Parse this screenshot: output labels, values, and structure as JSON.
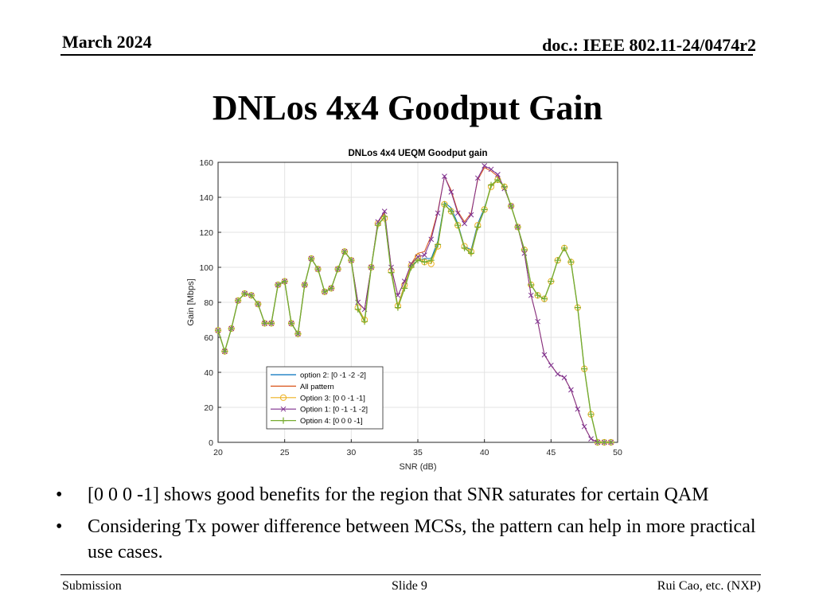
{
  "header": {
    "date": "March 2024",
    "doc": "doc.: IEEE 802.11-24/0474r2"
  },
  "slide_title": "DNLos 4x4 Goodput Gain",
  "bullets": [
    "[0 0 0 -1] shows good benefits for the region that SNR saturates for certain QAM",
    "Considering Tx power difference between MCSs, the pattern can help in more practical use cases."
  ],
  "bullet_glyph": "•",
  "footer": {
    "left": "Submission",
    "center": "Slide 9",
    "right": "Rui Cao, etc. (NXP)"
  },
  "chart_data": {
    "type": "line",
    "title": "DNLos 4x4 UEQM Goodput gain",
    "xlabel": "SNR (dB)",
    "ylabel": "Gain [Mbps]",
    "xlim": [
      20,
      50
    ],
    "ylim": [
      0,
      160
    ],
    "xticks": [
      20,
      25,
      30,
      35,
      40,
      45,
      50
    ],
    "yticks": [
      0,
      20,
      40,
      60,
      80,
      100,
      120,
      140,
      160
    ],
    "grid": true,
    "legend_position": "bottom-left",
    "x": [
      20,
      20.5,
      21,
      21.5,
      22,
      22.5,
      23,
      23.5,
      24,
      24.5,
      25,
      25.5,
      26,
      26.5,
      27,
      27.5,
      28,
      28.5,
      29,
      29.5,
      30,
      30.5,
      31,
      31.5,
      32,
      32.5,
      33,
      33.5,
      34,
      34.5,
      35,
      35.5,
      36,
      36.5,
      37,
      37.5,
      38,
      38.5,
      39,
      39.5,
      40,
      40.5,
      41,
      41.5,
      42,
      42.5,
      43,
      43.5,
      44,
      44.5,
      45,
      45.5,
      46,
      46.5,
      47,
      47.5,
      48,
      48.5,
      49,
      49.5
    ],
    "series": [
      {
        "name": "option 2: [0 -1 -2 -2]",
        "color": "#0072BD",
        "marker": "none",
        "values": [
          64,
          52,
          65,
          81,
          85,
          84,
          79,
          68,
          68,
          90,
          92,
          68,
          62,
          90,
          105,
          99,
          86,
          88,
          99,
          109,
          104,
          77,
          70,
          100,
          125,
          128,
          98,
          78,
          90,
          101,
          104,
          105,
          105,
          115,
          137,
          134,
          125,
          112,
          110,
          125,
          134,
          146,
          150,
          146,
          135,
          123,
          110,
          90,
          84,
          82,
          92,
          104,
          111,
          103,
          77,
          42,
          16,
          0,
          0,
          0
        ]
      },
      {
        "name": "All pattern",
        "color": "#D95319",
        "marker": "none",
        "values": [
          64,
          52,
          65,
          81,
          85,
          84,
          79,
          68,
          68,
          90,
          92,
          68,
          62,
          90,
          105,
          99,
          86,
          88,
          99,
          109,
          104,
          80,
          76,
          100,
          126,
          131,
          100,
          84,
          92,
          102,
          108,
          109,
          118,
          132,
          152,
          144,
          132,
          126,
          131,
          150,
          157,
          155,
          152,
          145,
          135,
          123,
          108,
          84,
          69,
          50,
          44,
          39,
          37,
          30,
          19,
          9,
          2,
          0,
          0,
          0
        ]
      },
      {
        "name": "Option 3: [0 0  -1  -1]",
        "color": "#EDB120",
        "marker": "circle",
        "values": [
          64,
          52,
          65,
          81,
          85,
          84,
          79,
          68,
          68,
          90,
          92,
          68,
          62,
          90,
          105,
          99,
          86,
          88,
          99,
          109,
          104,
          77,
          70,
          100,
          125,
          128,
          98,
          78,
          90,
          101,
          106,
          103,
          102,
          112,
          136,
          132,
          124,
          112,
          109,
          124,
          133,
          146,
          150,
          146,
          135,
          123,
          110,
          90,
          84,
          82,
          92,
          104,
          111,
          103,
          77,
          42,
          16,
          0,
          0,
          0
        ]
      },
      {
        "name": "Option 1: [0  -1  -1  -2]",
        "color": "#7E2F8E",
        "marker": "x",
        "values": [
          64,
          52,
          65,
          81,
          85,
          84,
          79,
          68,
          68,
          90,
          92,
          68,
          62,
          90,
          105,
          99,
          86,
          88,
          99,
          109,
          104,
          80,
          76,
          100,
          126,
          132,
          100,
          84,
          92,
          102,
          106,
          107,
          116,
          131,
          152,
          143,
          131,
          125,
          130,
          151,
          158,
          156,
          153,
          145,
          135,
          123,
          108,
          84,
          69,
          50,
          44,
          39,
          37,
          30,
          19,
          9,
          2,
          0,
          0,
          0
        ]
      },
      {
        "name": "Option 4: [0 0 0 -1]",
        "color": "#77AC30",
        "marker": "plus",
        "values": [
          64,
          52,
          65,
          81,
          85,
          84,
          79,
          68,
          68,
          90,
          92,
          68,
          62,
          90,
          105,
          99,
          86,
          88,
          99,
          109,
          104,
          76,
          69,
          100,
          124,
          129,
          97,
          77,
          88,
          100,
          104,
          103,
          104,
          113,
          136,
          132,
          124,
          111,
          108,
          123,
          133,
          147,
          150,
          146,
          135,
          123,
          110,
          90,
          84,
          82,
          92,
          104,
          111,
          103,
          77,
          42,
          16,
          0,
          0,
          0
        ]
      }
    ]
  }
}
